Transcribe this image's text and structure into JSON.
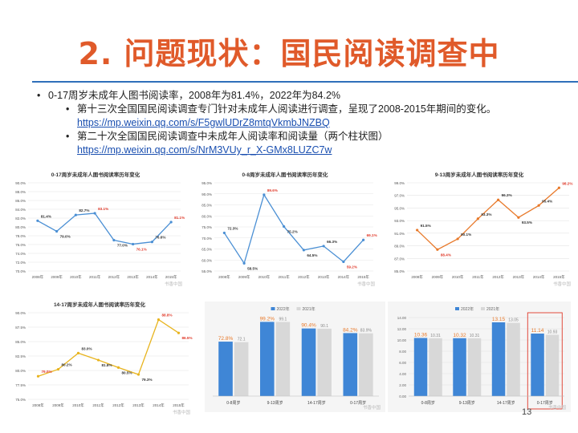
{
  "slide": {
    "title": "2. 问题现状：国民阅读调查中",
    "page_number": "13",
    "bullet1": "0-17周岁未成年人图书阅读率，2008年为81.4%，2022年为84.2%",
    "bullet2_text": "第十三次全国国民阅读调查专门针对未成年人阅读进行调查，呈现了2008-2015年期间的变化。",
    "bullet2_link": "https://mp.weixin.qq.com/s/F5gwlUDrZ8mtqVkmbJNZBQ",
    "bullet3_text": "第二十次全国国民阅读调查中未成年人阅读率和阅读量（两个柱状图）",
    "bullet3_link": "https://mp.weixin.qq.com/s/NrM3VUy_r_X-GMx8LUZC7w",
    "watermark": "书香中国"
  },
  "colors": {
    "title": "#e05a2a",
    "rule": "#2f6fba",
    "blue_line": "#4a8fd4",
    "orange_line": "#e8792a",
    "gold_line": "#e8b41e",
    "bar_blue": "#3f86d6",
    "bar_gray": "#d8d8d8",
    "label_red": "#e03a2a"
  },
  "chart_data": [
    {
      "type": "line",
      "title": "0-17周岁未成年人图书阅读率历年变化",
      "x": [
        "2008年",
        "2009年",
        "2010年",
        "2011年",
        "2012年",
        "2013年",
        "2014年",
        "2015年"
      ],
      "series": [
        {
          "values": [
            81.4,
            79.0,
            82.7,
            83.1,
            77.0,
            76.1,
            76.6,
            81.1
          ]
        }
      ],
      "data_labels": [
        "81.4%",
        "79.0%",
        "82.7%",
        "83.1%",
        "77.0%",
        "76.1%",
        "76.6%",
        "81.1%"
      ],
      "y_ticks": [
        "90.0%",
        "88.0%",
        "86.0%",
        "84.0%",
        "82.0%",
        "80.0%",
        "78.0%",
        "76.0%",
        "74.0%",
        "72.0%",
        "70.0%"
      ],
      "ylim": [
        70,
        90
      ],
      "highlight": [
        3,
        5,
        7
      ]
    },
    {
      "type": "line",
      "title": "0-8周岁未成年人图书阅读率历年变化",
      "x": [
        "2008年",
        "2009年",
        "2010年",
        "2011年",
        "2012年",
        "2013年",
        "2014年",
        "2015年"
      ],
      "series": [
        {
          "values": [
            72.3,
            58.5,
            89.6,
            75.2,
            64.5,
            66.3,
            59.2,
            69.1
          ]
        }
      ],
      "data_labels": [
        "72.3%",
        "58.5%",
        "89.6%",
        "75.2%",
        "64.5%",
        "66.3%",
        "59.2%",
        "69.1%"
      ],
      "y_ticks": [
        "95.0%",
        "90.0%",
        "85.0%",
        "80.0%",
        "75.0%",
        "70.0%",
        "65.0%",
        "60.0%",
        "55.0%"
      ],
      "ylim": [
        55,
        95
      ],
      "highlight": [
        2,
        6,
        7
      ]
    },
    {
      "type": "line",
      "title": "9-13周岁未成年人图书阅读率历年变化",
      "x": [
        "2008年",
        "2009年",
        "2010年",
        "2011年",
        "2012年",
        "2013年",
        "2014年",
        "2015年"
      ],
      "series": [
        {
          "values": [
            91.5,
            88.4,
            90.1,
            93.3,
            96.3,
            93.5,
            95.4,
            98.2
          ]
        }
      ],
      "data_labels": [
        "91.5%",
        "88.4%",
        "90.1%",
        "93.3%",
        "96.3%",
        "93.5%",
        "95.4%",
        "98.2%"
      ],
      "y_ticks": [
        "99.0%",
        "97.0%",
        "95.0%",
        "93.0%",
        "91.0%",
        "89.0%",
        "87.0%",
        "85.0%"
      ],
      "ylim": [
        85,
        99
      ],
      "highlight": [
        1,
        7
      ]
    },
    {
      "type": "line",
      "title": "14-17周岁未成年人图书阅读率历年变化",
      "x": [
        "2008年",
        "2009年",
        "2010年",
        "2011年",
        "2012年",
        "2013年",
        "2014年",
        "2015年"
      ],
      "series": [
        {
          "values": [
            79.0,
            80.2,
            83.0,
            81.8,
            80.5,
            79.3,
            88.8,
            86.5
          ]
        }
      ],
      "data_labels": [
        "79.0%",
        "80.2%",
        "83.0%",
        "81.8%",
        "80.5%",
        "79.3%",
        "88.8%",
        "86.5%"
      ],
      "y_ticks": [
        "90.0%",
        "87.5%",
        "85.0%",
        "82.5%",
        "80.0%",
        "77.5%",
        "75.0%"
      ],
      "ylim": [
        75,
        90
      ],
      "highlight": [
        0,
        6,
        7
      ]
    },
    {
      "type": "bar",
      "legend": [
        "2022年",
        "2021年"
      ],
      "categories": [
        "0-8周岁",
        "9-13周岁",
        "14-17周岁",
        "0-17周岁"
      ],
      "series": [
        {
          "name": "2022年",
          "values": [
            72.8,
            99.2,
            90.4,
            84.2
          ]
        },
        {
          "name": "2021年",
          "values": [
            72.1,
            99.1,
            90.1,
            83.9
          ]
        }
      ],
      "data_labels": [
        [
          "72.8%",
          "99.2%",
          "90.4%",
          "84.2%"
        ],
        [
          "72.1",
          "99.1",
          "90.1",
          "83.9%"
        ]
      ],
      "ylim": [
        0,
        105
      ]
    },
    {
      "type": "bar",
      "legend": [
        "2022年",
        "2021年"
      ],
      "categories": [
        "0-8周岁",
        "9-13周岁",
        "14-17周岁",
        "0-17周岁"
      ],
      "series": [
        {
          "name": "2022年",
          "values": [
            10.36,
            10.32,
            13.15,
            11.14
          ]
        },
        {
          "name": "2021年",
          "values": [
            10.31,
            10.31,
            13.05,
            10.93
          ]
        }
      ],
      "data_labels": [
        [
          "10.36",
          "10.32",
          "13.15",
          "11.14"
        ],
        [
          "10.31",
          "10.31",
          "13.05",
          "10.93"
        ]
      ],
      "y_ticks": [
        "14.00",
        "12.00",
        "10.00",
        "8.00",
        "6.00",
        "4.00",
        "2.00",
        "0.00"
      ],
      "ylim": [
        0,
        14
      ],
      "highlight_category": 3
    }
  ]
}
